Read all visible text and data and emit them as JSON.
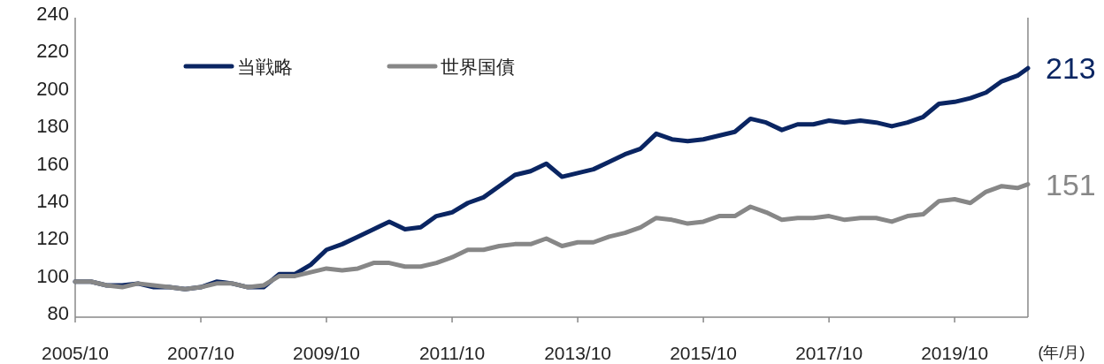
{
  "chart_data": {
    "type": "line",
    "xlabel": "(年/月)",
    "x": [
      "2005-10",
      "2006-01",
      "2006-04",
      "2006-07",
      "2006-10",
      "2007-01",
      "2007-04",
      "2007-07",
      "2007-10",
      "2008-01",
      "2008-04",
      "2008-07",
      "2008-10",
      "2009-01",
      "2009-04",
      "2009-07",
      "2009-10",
      "2010-01",
      "2010-04",
      "2010-07",
      "2010-10",
      "2011-01",
      "2011-04",
      "2011-07",
      "2011-10",
      "2012-01",
      "2012-04",
      "2012-07",
      "2012-10",
      "2013-01",
      "2013-04",
      "2013-07",
      "2013-10",
      "2014-01",
      "2014-04",
      "2014-07",
      "2014-10",
      "2015-01",
      "2015-04",
      "2015-07",
      "2015-10",
      "2016-01",
      "2016-04",
      "2016-07",
      "2016-10",
      "2017-01",
      "2017-04",
      "2017-07",
      "2017-10",
      "2018-01",
      "2018-04",
      "2018-07",
      "2018-10",
      "2019-01",
      "2019-04",
      "2019-07",
      "2019-10",
      "2020-01",
      "2020-04",
      "2020-07",
      "2020-10",
      "2020-12"
    ],
    "xlim": [
      "2005-10",
      "2020-12"
    ],
    "xticks": [
      {
        "value": "2005-10",
        "label": "2005/10"
      },
      {
        "value": "2007-10",
        "label": "2007/10"
      },
      {
        "value": "2009-10",
        "label": "2009/10"
      },
      {
        "value": "2011-10",
        "label": "2011/10"
      },
      {
        "value": "2013-10",
        "label": "2013/10"
      },
      {
        "value": "2015-10",
        "label": "2015/10"
      },
      {
        "value": "2017-10",
        "label": "2017/10"
      },
      {
        "value": "2019-10",
        "label": "2019/10"
      }
    ],
    "ylim": [
      80,
      240
    ],
    "yticks": [
      80,
      100,
      120,
      140,
      160,
      180,
      200,
      220,
      240
    ],
    "legend": "top left",
    "series": [
      {
        "name": "当戦略",
        "color": "#0a2562",
        "values": [
          99,
          99,
          97,
          97,
          98,
          96,
          96,
          95,
          96,
          99,
          98,
          96,
          96,
          103,
          103,
          108,
          116,
          119,
          123,
          127,
          131,
          127,
          128,
          134,
          136,
          141,
          144,
          150,
          156,
          158,
          162,
          155,
          157,
          159,
          163,
          167,
          170,
          178,
          175,
          174,
          175,
          177,
          179,
          186,
          184,
          180,
          183,
          183,
          185,
          184,
          185,
          184,
          182,
          184,
          187,
          194,
          195,
          197,
          200,
          206,
          209,
          213
        ]
      },
      {
        "name": "世界国債",
        "color": "#878787",
        "values": [
          99,
          99,
          97,
          96,
          98,
          97,
          96,
          95,
          96,
          98,
          98,
          96,
          97,
          102,
          102,
          104,
          106,
          105,
          106,
          109,
          109,
          107,
          107,
          109,
          112,
          116,
          116,
          118,
          119,
          119,
          122,
          118,
          120,
          120,
          123,
          125,
          128,
          133,
          132,
          130,
          131,
          134,
          134,
          139,
          136,
          132,
          133,
          133,
          134,
          132,
          133,
          133,
          131,
          134,
          135,
          142,
          143,
          141,
          147,
          150,
          149,
          151
        ]
      }
    ],
    "annotations": [
      {
        "text": "213",
        "x": "2020-12",
        "y": 213
      },
      {
        "text": "151",
        "x": "2020-12",
        "y": 151
      }
    ]
  }
}
